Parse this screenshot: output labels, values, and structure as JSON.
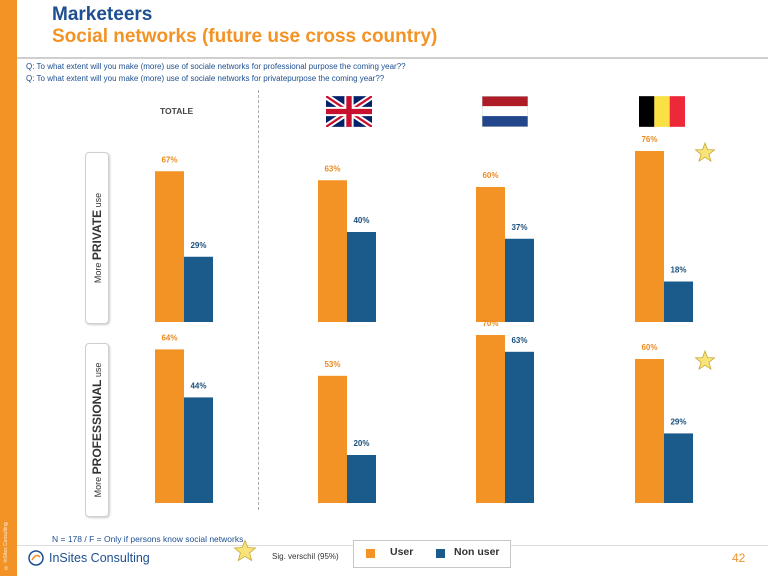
{
  "header": {
    "title": "Marketeers",
    "subtitle": "Social networks (future use cross country)"
  },
  "questions": [
    "Q: To what extent will you make (more) use of sociale networks for professional purpose the coming year??",
    "Q: To what extent will you make (more) use of sociale networks for privatepurpose the coming year??"
  ],
  "row_labels": {
    "private": {
      "prefix": "More ",
      "emphasis": "PRIVATE",
      "suffix": " use"
    },
    "professional": {
      "prefix": "More ",
      "emphasis": "PROFESSIONAL",
      "suffix": " use"
    }
  },
  "total_label": "TOTALE",
  "flags": [
    {
      "name": "uk-flag-icon",
      "country": "United Kingdom"
    },
    {
      "name": "netherlands-flag-icon",
      "country": "Netherlands"
    },
    {
      "name": "belgium-flag-icon",
      "country": "Belgium"
    }
  ],
  "footer": {
    "note": "N = 178 / F = Only if persons know social networks",
    "logo": "InSites Consulting",
    "sig_label": "Sig. verschil (95%)",
    "page_number": "42",
    "side_copyright": "© InSites Consulting"
  },
  "colors": {
    "user": "#f39325",
    "non_user": "#1a5b8c",
    "accent": "#1d4f91"
  },
  "chart_data": {
    "type": "bar",
    "categories": [
      "TOTALE",
      "United Kingdom",
      "Netherlands",
      "Belgium"
    ],
    "series_names": [
      "User",
      "Non user"
    ],
    "ylim": [
      0,
      100
    ],
    "panels": [
      {
        "label": "More PRIVATE use",
        "series": [
          {
            "name": "User",
            "values": [
              67,
              63,
              60,
              76
            ],
            "labels": [
              "67%",
              "63%",
              "60%",
              "76%"
            ]
          },
          {
            "name": "Non user",
            "values": [
              29,
              40,
              37,
              18
            ],
            "labels": [
              "29%",
              "40%",
              "37%",
              "18%"
            ]
          }
        ],
        "significant": [
          false,
          false,
          false,
          true
        ]
      },
      {
        "label": "More PROFESSIONAL use",
        "series": [
          {
            "name": "User",
            "values": [
              64,
              53,
              70,
              60
            ],
            "labels": [
              "64%",
              "53%",
              "70%",
              "60%"
            ]
          },
          {
            "name": "Non user",
            "values": [
              44,
              20,
              63,
              29
            ],
            "labels": [
              "44%",
              "20%",
              "63%",
              "29%"
            ]
          }
        ],
        "significant": [
          false,
          false,
          false,
          true
        ]
      }
    ]
  }
}
